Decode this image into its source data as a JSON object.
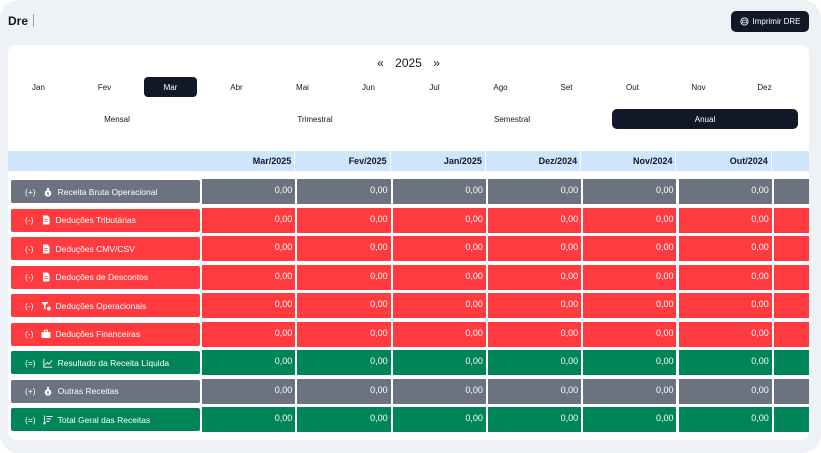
{
  "header": {
    "title": "Dre",
    "print_label": "Imprimir DRE",
    "print_icon": "printer-icon"
  },
  "year_nav": {
    "prev": "«",
    "year": "2025",
    "next": "»"
  },
  "months": [
    "Jan",
    "Fev",
    "Mar",
    "Abr",
    "Mai",
    "Jun",
    "Jul",
    "Ago",
    "Set",
    "Out",
    "Nov",
    "Dez"
  ],
  "active_month": "Mar",
  "periods": [
    "Mensal",
    "Trimestral",
    "Semestral",
    "Anual"
  ],
  "active_period": "Anual",
  "table": {
    "columns": [
      "Mar/2025",
      "Fev/2025",
      "Jan/2025",
      "Dez/2024",
      "Nov/2024",
      "Out/2024"
    ],
    "rows": [
      {
        "sign": "(+)",
        "label": "Receita Bruta Operacional",
        "icon": "money-bag-icon",
        "color": "#6b7280",
        "values": [
          "0,00",
          "0,00",
          "0,00",
          "0,00",
          "0,00",
          "0,00"
        ]
      },
      {
        "sign": "(-)",
        "label": "Deduções Tributárias",
        "icon": "document-icon",
        "color": "#ff3b3f",
        "values": [
          "0,00",
          "0,00",
          "0,00",
          "0,00",
          "0,00",
          "0,00"
        ]
      },
      {
        "sign": "(-)",
        "label": "Deduções CMV/CSV",
        "icon": "document-icon",
        "color": "#ff3b3f",
        "values": [
          "0,00",
          "0,00",
          "0,00",
          "0,00",
          "0,00",
          "0,00"
        ]
      },
      {
        "sign": "(-)",
        "label": "Deduções de Descontos",
        "icon": "document-icon",
        "color": "#ff3b3f",
        "values": [
          "0,00",
          "0,00",
          "0,00",
          "0,00",
          "0,00",
          "0,00"
        ]
      },
      {
        "sign": "(-)",
        "label": "Deduções Operacionais",
        "icon": "filter-icon",
        "color": "#ff3b3f",
        "values": [
          "0,00",
          "0,00",
          "0,00",
          "0,00",
          "0,00",
          "0,00"
        ]
      },
      {
        "sign": "(-)",
        "label": "Deduções Financeiras",
        "icon": "briefcase-icon",
        "color": "#ff3b3f",
        "values": [
          "0,00",
          "0,00",
          "0,00",
          "0,00",
          "0,00",
          "0,00"
        ]
      },
      {
        "sign": "(=)",
        "label": "Resultado da Receita Líquida",
        "icon": "chart-line-icon",
        "color": "#00845a",
        "values": [
          "0,00",
          "0,00",
          "0,00",
          "0,00",
          "0,00",
          "0,00"
        ]
      },
      {
        "sign": "(+)",
        "label": "Outras Receitas",
        "icon": "money-bag-icon",
        "color": "#6b7280",
        "values": [
          "0,00",
          "0,00",
          "0,00",
          "0,00",
          "0,00",
          "0,00"
        ]
      },
      {
        "sign": "(=)",
        "label": "Total Geral das Receitas",
        "icon": "sort-lines-icon",
        "color": "#00845a",
        "values": [
          "0,00",
          "0,00",
          "0,00",
          "0,00",
          "0,00",
          "0,00"
        ]
      }
    ]
  }
}
